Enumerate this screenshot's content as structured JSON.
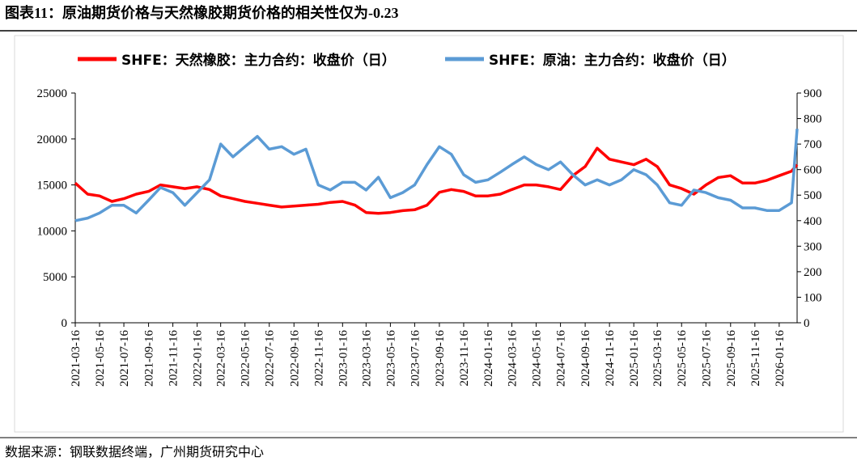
{
  "chart_data": {
    "type": "line",
    "title": "图表11：原油期货价格与天然橡胶期货价格的相关性仅为-0.23",
    "source": "数据来源：钢联数据终端，广州期货研究中心",
    "x": [
      "2021-03-16",
      "2021-04-16",
      "2021-05-16",
      "2021-06-16",
      "2021-07-16",
      "2021-08-16",
      "2021-09-16",
      "2021-10-16",
      "2021-11-16",
      "2021-12-16",
      "2022-01-16",
      "2022-02-16",
      "2022-03-16",
      "2022-04-16",
      "2022-05-16",
      "2022-06-16",
      "2022-07-16",
      "2022-08-16",
      "2022-09-16",
      "2022-10-16",
      "2022-11-16",
      "2022-12-16",
      "2023-01-16",
      "2023-02-16",
      "2023-03-16",
      "2023-04-16",
      "2023-05-16",
      "2023-06-16",
      "2023-07-16",
      "2023-08-16",
      "2023-09-16",
      "2023-10-16",
      "2023-11-16",
      "2023-12-16",
      "2024-01-16",
      "2024-02-16",
      "2024-03-16",
      "2024-04-16",
      "2024-05-16",
      "2024-06-16",
      "2024-07-16",
      "2024-08-16",
      "2024-09-16",
      "2024-10-16",
      "2024-11-16",
      "2024-12-16",
      "2025-01-16",
      "2025-02-16",
      "2025-03-16",
      "2025-04-16",
      "2025-05-16",
      "2025-06-16",
      "2025-07-16",
      "2025-08-16",
      "2025-09-16",
      "2025-10-16",
      "2025-11-16",
      "2025-12-16",
      "2026-01-16",
      "2026-02-16",
      "2026-03-02"
    ],
    "xlim": [
      "2021-03-16",
      "2026-03-02"
    ],
    "xticks": [
      "2021-03-16",
      "2021-05-16",
      "2021-07-16",
      "2021-09-16",
      "2021-11-16",
      "2022-01-16",
      "2022-03-16",
      "2022-05-16",
      "2022-07-16",
      "2022-09-16",
      "2022-11-16",
      "2023-01-16",
      "2023-03-16",
      "2023-05-16",
      "2023-07-16",
      "2023-09-16",
      "2023-11-16",
      "2024-01-16",
      "2024-03-16",
      "2024-05-16",
      "2024-07-16",
      "2024-09-16",
      "2024-11-16",
      "2025-01-16",
      "2025-03-16",
      "2025-05-16",
      "2025-07-16",
      "2025-09-16",
      "2025-11-16",
      "2026-01-16"
    ],
    "ylim": [
      0,
      25000
    ],
    "yticks": [
      0,
      5000,
      10000,
      15000,
      20000,
      25000
    ],
    "y2lim": [
      0,
      900
    ],
    "y2ticks": [
      0,
      100,
      200,
      300,
      400,
      500,
      600,
      700,
      800,
      900
    ],
    "legend": "top",
    "series": [
      {
        "name": "SHFE：天然橡胶：主力合约：收盘价（日）",
        "color": "#ff0000",
        "values": [
          15200,
          14000,
          13800,
          13200,
          13500,
          14000,
          14300,
          15000,
          14800,
          14600,
          14800,
          14500,
          13800,
          13500,
          13200,
          13000,
          12800,
          12600,
          12700,
          12800,
          12900,
          13100,
          13200,
          12800,
          12000,
          11900,
          12000,
          12200,
          12300,
          12800,
          14200,
          14500,
          14300,
          13800,
          13800,
          14000,
          14500,
          15000,
          15000,
          14800,
          14500,
          16000,
          17000,
          19000,
          17800,
          17500,
          17200,
          17800,
          17000,
          15000,
          14600,
          14000,
          15000,
          15800,
          16000,
          15200,
          15200,
          15500,
          16000,
          16500,
          17200
        ]
      },
      {
        "name": "SHFE：原油：主力合约：收盘价（日）",
        "color": "#5b9bd5",
        "axis": "y2",
        "values": [
          400,
          410,
          430,
          460,
          460,
          430,
          480,
          530,
          510,
          460,
          510,
          560,
          700,
          650,
          690,
          730,
          680,
          690,
          660,
          680,
          540,
          520,
          550,
          550,
          520,
          570,
          490,
          510,
          540,
          620,
          690,
          660,
          580,
          550,
          560,
          590,
          620,
          650,
          620,
          600,
          630,
          580,
          540,
          560,
          540,
          560,
          600,
          580,
          540,
          470,
          460,
          520,
          510,
          490,
          480,
          450,
          450,
          440,
          440,
          470,
          760
        ]
      }
    ]
  }
}
